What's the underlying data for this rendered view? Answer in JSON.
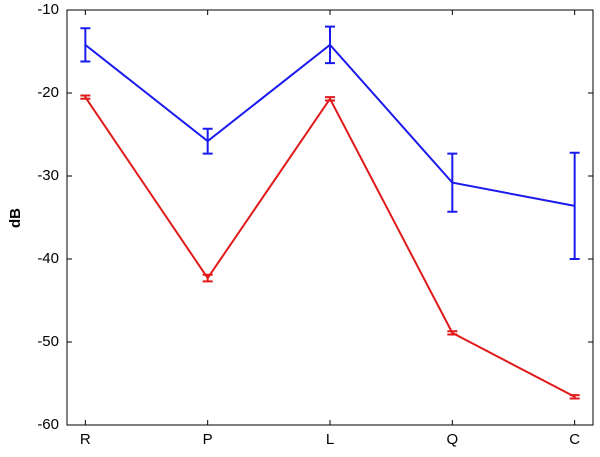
{
  "chart_data": {
    "type": "line",
    "y_label": "dB",
    "categories": [
      "R",
      "P",
      "L",
      "Q",
      "C"
    ],
    "series": [
      {
        "color": "#1a1aee",
        "values": [
          -14.2,
          -25.8,
          -14.2,
          -30.8,
          -33.6
        ],
        "errors": [
          2.0,
          1.5,
          2.2,
          3.5,
          6.4
        ]
      },
      {
        "color": "#e01a1a",
        "values": [
          -20.5,
          -42.3,
          -20.7,
          -48.9,
          -56.6
        ],
        "errors": [
          0.2,
          0.4,
          0.2,
          0.2,
          0.2
        ]
      }
    ],
    "ylim": [
      -60,
      -10
    ],
    "yticks": [
      -60,
      -50,
      -40,
      -30,
      -20,
      -10
    ],
    "grid": false
  }
}
